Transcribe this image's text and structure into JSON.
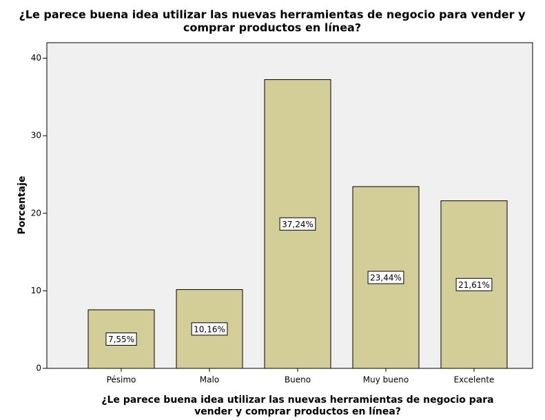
{
  "chart_data": {
    "type": "bar",
    "title": [
      "¿Le parece buena idea utilizar las nuevas herramientas de negocio para vender y",
      "comprar productos en línea?"
    ],
    "xlabel": [
      "¿Le parece buena idea utilizar las nuevas herramientas de negocio para",
      "vender y comprar productos en línea?"
    ],
    "ylabel": "Porcentaje",
    "categories": [
      "Pésimo",
      "Malo",
      "Bueno",
      "Muy bueno",
      "Excelente"
    ],
    "values": [
      7.55,
      10.16,
      37.24,
      23.44,
      21.61
    ],
    "value_labels": [
      "7,55%",
      "10,16%",
      "37,24%",
      "23,44%",
      "21,61%"
    ],
    "color": "#d3ce97",
    "ylim": [
      0,
      42
    ],
    "yticks": [
      0,
      10,
      20,
      30,
      40
    ],
    "grid": false
  }
}
